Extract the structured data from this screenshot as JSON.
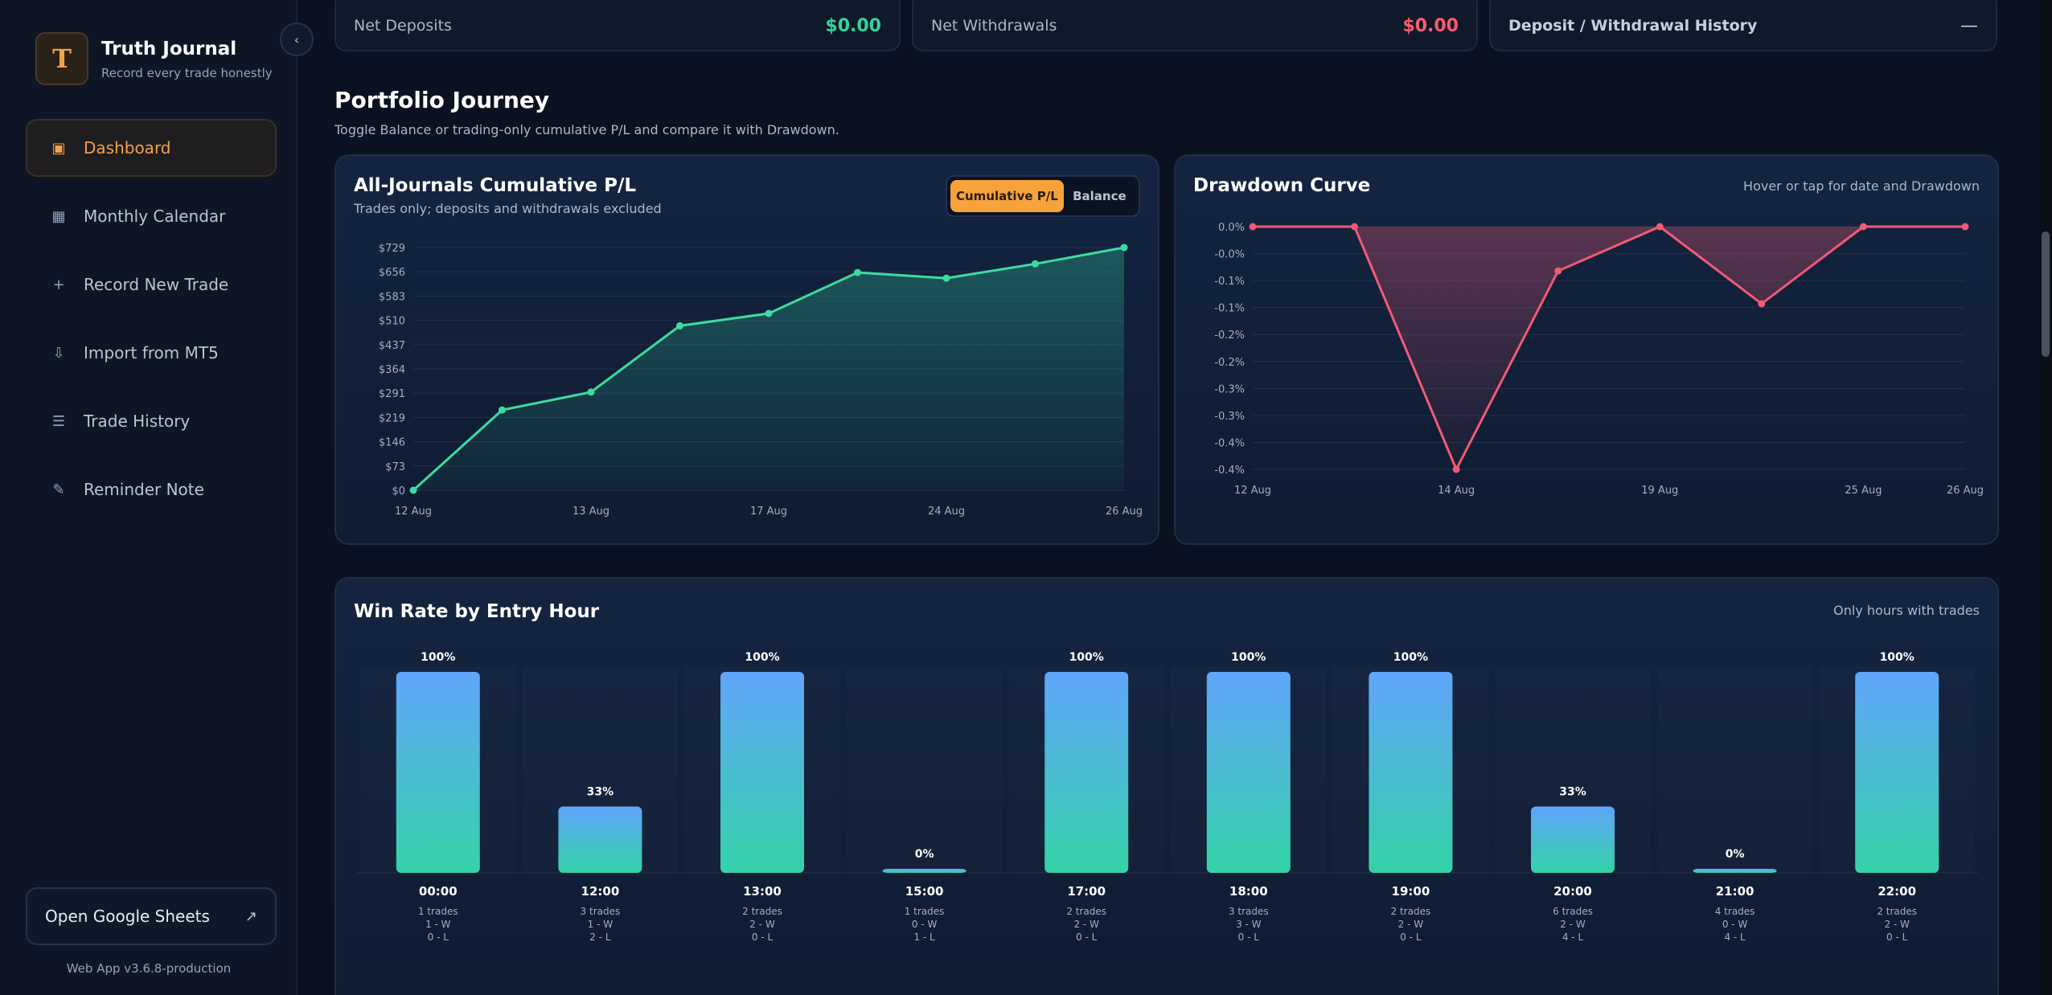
{
  "sidebar": {
    "brand_letter": "T",
    "brand_title": "Truth Journal",
    "brand_subtitle": "Record every trade honestly",
    "collapse_icon": "chevron-left-icon",
    "nav": [
      {
        "label": "Dashboard",
        "icon": "dashboard-icon",
        "active": true
      },
      {
        "label": "Monthly Calendar",
        "icon": "calendar-grid-icon",
        "active": false
      },
      {
        "label": "Record New Trade",
        "icon": "plus-icon",
        "active": false
      },
      {
        "label": "Import from MT5",
        "icon": "download-icon",
        "active": false
      },
      {
        "label": "Trade History",
        "icon": "list-icon",
        "active": false
      },
      {
        "label": "Reminder Note",
        "icon": "pencil-icon",
        "active": false
      }
    ],
    "sheets_label": "Open Google Sheets",
    "version": "Web App v3.6.8-production"
  },
  "summary": {
    "net_deposits_label": "Net Deposits",
    "net_deposits_value": "$0.00",
    "net_withdrawals_label": "Net Withdrawals",
    "net_withdrawals_value": "$0.00",
    "history_label": "Deposit / Withdrawal History",
    "history_toggle": "—"
  },
  "portfolio": {
    "title": "Portfolio Journey",
    "subtitle": "Toggle Balance or trading-only cumulative P/L and compare it with Drawdown."
  },
  "pl_panel": {
    "title": "All-Journals Cumulative P/L",
    "subtitle": "Trades only; deposits and withdrawals excluded",
    "toggle_on": "Cumulative P/L",
    "toggle_off": "Balance"
  },
  "dd_panel": {
    "title": "Drawdown Curve",
    "hint": "Hover or tap for date and Drawdown"
  },
  "winrate_panel": {
    "title": "Win Rate by Entry Hour",
    "hint": "Only hours with trades"
  },
  "colors": {
    "accent": "#f4a24a",
    "green": "#34d399",
    "red": "#fb5b6e",
    "line_pl": "#3ddba0",
    "line_dd": "#f25a75",
    "bar_top": "#60a5fa",
    "bar_bottom": "#34d3a8"
  },
  "chart_data": [
    {
      "type": "line",
      "title": "All-Journals Cumulative P/L",
      "x": [
        "12 Aug",
        "",
        "13 Aug",
        "",
        "17 Aug",
        "",
        "24 Aug",
        "",
        "26 Aug"
      ],
      "x_ticks": [
        "12 Aug",
        "13 Aug",
        "17 Aug",
        "24 Aug",
        "26 Aug"
      ],
      "y_ticks": [
        "$0",
        "$73",
        "$146",
        "$219",
        "$291",
        "$364",
        "$437",
        "$510",
        "$583",
        "$656",
        "$729"
      ],
      "ylim": [
        0,
        729
      ],
      "series": [
        {
          "values": [
            0,
            241,
            295,
            494,
            531,
            654,
            637,
            680,
            729
          ]
        }
      ],
      "grid": true
    },
    {
      "type": "line",
      "title": "Drawdown Curve",
      "x": [
        "12 Aug",
        "",
        "14 Aug",
        "",
        "19 Aug",
        "",
        "25 Aug",
        "26 Aug"
      ],
      "x_ticks": [
        "12 Aug",
        "14 Aug",
        "19 Aug",
        "25 Aug",
        "26 Aug"
      ],
      "y_ticks": [
        "0.0%",
        "-0.0%",
        "-0.1%",
        "-0.1%",
        "-0.2%",
        "-0.2%",
        "-0.3%",
        "-0.3%",
        "-0.4%",
        "-0.4%"
      ],
      "ylim": [
        -0.4,
        0
      ],
      "series": [
        {
          "values": [
            0,
            0,
            -0.4,
            -0.073,
            0,
            -0.127,
            0,
            0
          ]
        }
      ],
      "grid": true
    },
    {
      "type": "bar",
      "title": "Win Rate by Entry Hour",
      "categories": [
        "00:00",
        "12:00",
        "13:00",
        "15:00",
        "17:00",
        "18:00",
        "19:00",
        "20:00",
        "21:00",
        "22:00"
      ],
      "values": [
        100,
        33,
        100,
        0,
        100,
        100,
        100,
        33,
        0,
        100
      ],
      "value_labels": [
        "100%",
        "33%",
        "100%",
        "0%",
        "100%",
        "100%",
        "100%",
        "33%",
        "0%",
        "100%"
      ],
      "trades": [
        "1 trades",
        "3 trades",
        "2 trades",
        "1 trades",
        "2 trades",
        "3 trades",
        "2 trades",
        "6 trades",
        "4 trades",
        "2 trades"
      ],
      "wins": [
        "1 - W",
        "1 - W",
        "2 - W",
        "0 - W",
        "2 - W",
        "3 - W",
        "2 - W",
        "2 - W",
        "0 - W",
        "2 - W"
      ],
      "losses": [
        "0 - L",
        "2 - L",
        "0 - L",
        "1 - L",
        "0 - L",
        "0 - L",
        "0 - L",
        "4 - L",
        "4 - L",
        "0 - L"
      ],
      "ylim": [
        0,
        100
      ]
    }
  ]
}
